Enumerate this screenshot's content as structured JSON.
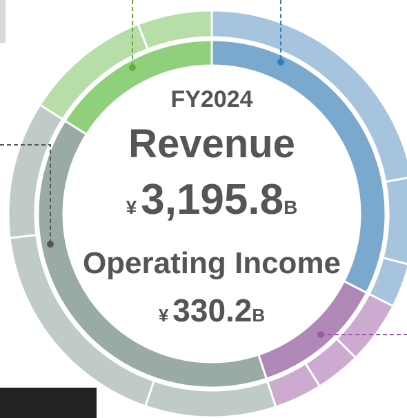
{
  "chart_data": {
    "type": "donut",
    "title": "FY2024",
    "metrics": [
      {
        "label": "Revenue",
        "currency": "¥",
        "value": "3,195.8",
        "unit": "B"
      },
      {
        "label": "Operating Income",
        "currency": "¥",
        "value": "330.2",
        "unit": "B"
      }
    ],
    "rings": [
      {
        "values": [
          32.5,
          12.4,
          39.1,
          16.0
        ],
        "colors": [
          "#7ba8cd",
          "#b088b8",
          "#9aaaa5",
          "#90cf7b"
        ]
      },
      {
        "values": [
          22.1,
          6.9,
          3.5,
          5.0,
          3.6,
          3.8,
          10.4,
          17.8,
          10.9,
          10.1,
          5.9
        ],
        "colors": [
          "#a6c4de",
          "#a6c4de",
          "#a6c4de",
          "#cdabd1",
          "#cdabd1",
          "#cdabd1",
          "#c0cbc7",
          "#c0cbc7",
          "#c0cbc7",
          "#b7dea8",
          "#b7dea8"
        ]
      }
    ]
  }
}
